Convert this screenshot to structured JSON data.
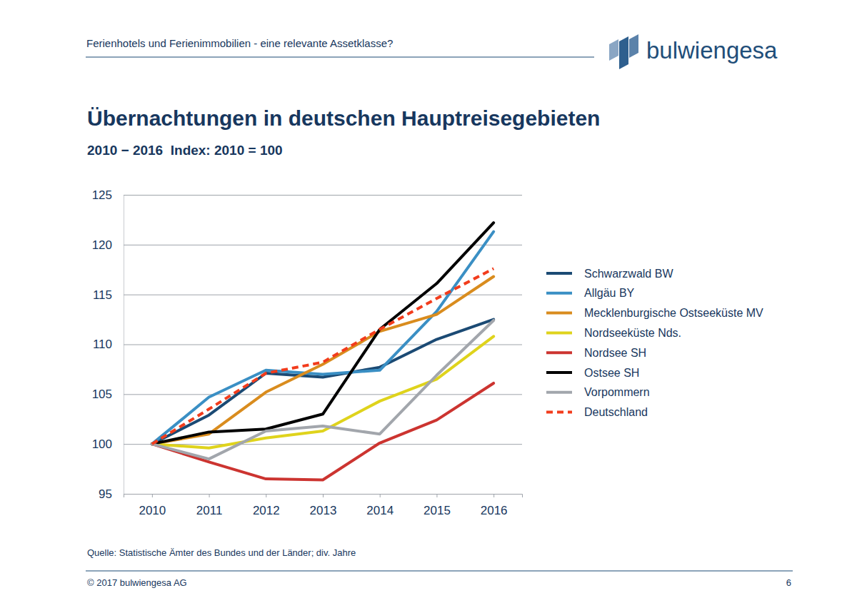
{
  "header": {
    "title": "Ferienhotels und Ferienimmobilien - eine relevante Assetklasse?",
    "logo": "bulwiengesa"
  },
  "chart_data": {
    "type": "line",
    "title": "Übernachtungen in deutschen Hauptreisegebieten",
    "subtitle": "2010 − 2016  Index: 2010 = 100",
    "source": "Quelle: Statistische Ämter des Bundes und der Länder; div. Jahre",
    "categories": [
      "2010",
      "2011",
      "2012",
      "2013",
      "2014",
      "2015",
      "2016"
    ],
    "series": [
      {
        "name": "Schwarzwald BW",
        "color": "#1b4a74",
        "line_style": "solid",
        "values": [
          100,
          102.9,
          107.1,
          106.7,
          107.7,
          110.5,
          112.5
        ]
      },
      {
        "name": "Allgäu BY",
        "color": "#3a8fc4",
        "line_style": "solid",
        "values": [
          100,
          104.7,
          107.4,
          107.0,
          107.4,
          113.3,
          121.3
        ]
      },
      {
        "name": "Mecklenburgische Ostseeküste MV",
        "color": "#d98c1e",
        "line_style": "solid",
        "values": [
          100,
          101.0,
          105.2,
          108.0,
          111.3,
          113.0,
          116.8
        ]
      },
      {
        "name": "Nordseeküste Nds.",
        "color": "#dfd31c",
        "line_style": "solid",
        "values": [
          100,
          99.6,
          100.6,
          101.3,
          104.3,
          106.5,
          110.8
        ]
      },
      {
        "name": "Nordsee SH",
        "color": "#cc3430",
        "line_style": "solid",
        "values": [
          100,
          98.2,
          96.5,
          96.4,
          100.1,
          102.4,
          106.1
        ]
      },
      {
        "name": "Ostsee SH",
        "color": "#000000",
        "line_style": "solid",
        "values": [
          100,
          101.2,
          101.5,
          103.0,
          111.5,
          116.1,
          122.2
        ]
      },
      {
        "name": "Vorpommern",
        "color": "#a2a6ac",
        "line_style": "solid",
        "values": [
          100,
          98.5,
          101.3,
          101.8,
          101.0,
          106.9,
          112.4
        ]
      },
      {
        "name": "Deutschland",
        "color": "#f23c1c",
        "line_style": "dashed",
        "values": [
          100,
          103.5,
          107.1,
          108.2,
          111.5,
          114.6,
          117.6
        ]
      }
    ],
    "ylim": [
      95,
      125
    ],
    "yticks": [
      95,
      100,
      105,
      110,
      115,
      120,
      125
    ],
    "grid": true,
    "legend": "right"
  },
  "footer": {
    "copyright": "© 2017 bulwiengesa AG",
    "page_number": 6
  }
}
